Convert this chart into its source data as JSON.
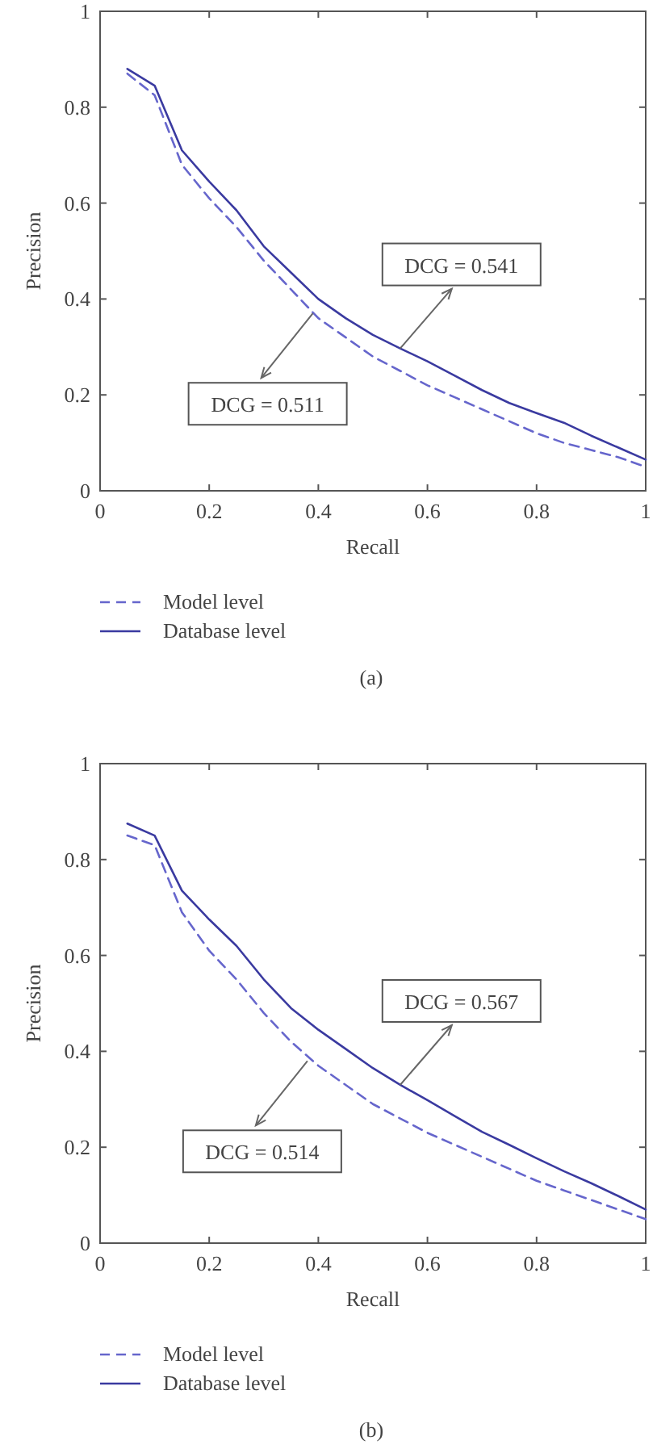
{
  "chart_data": [
    {
      "type": "line",
      "xlabel": "Recall",
      "ylabel": "Precision",
      "xlim": [
        0,
        1
      ],
      "ylim": [
        0,
        1
      ],
      "xticks": [
        0,
        0.2,
        0.4,
        0.6,
        0.8,
        1
      ],
      "yticks": [
        0,
        0.2,
        0.4,
        0.6,
        0.8,
        1
      ],
      "legend": "bottom",
      "x": [
        0.05,
        0.1,
        0.15,
        0.2,
        0.25,
        0.3,
        0.35,
        0.4,
        0.45,
        0.5,
        0.55,
        0.6,
        0.65,
        0.7,
        0.75,
        0.8,
        0.85,
        0.9,
        0.95,
        1
      ],
      "series": [
        {
          "name": "Model level",
          "color": "#6666cc",
          "line_style": "dashed",
          "values": [
            0.87,
            0.825,
            0.68,
            0.61,
            0.55,
            0.48,
            0.42,
            0.36,
            0.32,
            0.28,
            0.25,
            0.22,
            0.195,
            0.17,
            0.145,
            0.12,
            0.1,
            0.085,
            0.07,
            0.05
          ]
        },
        {
          "name": "Database level",
          "color": "#3a3aa0",
          "line_style": "solid",
          "values": [
            0.88,
            0.845,
            0.71,
            0.645,
            0.585,
            0.51,
            0.455,
            0.4,
            0.36,
            0.325,
            0.297,
            0.27,
            0.24,
            0.21,
            0.183,
            0.162,
            0.142,
            0.115,
            0.09,
            0.065
          ]
        }
      ],
      "annotations": [
        {
          "text": "DCG = 0.511",
          "x": 0.39,
          "y": 0.37
        },
        {
          "text": "DCG = 0.541",
          "x": 0.55,
          "y": 0.297
        },
        "(a)"
      ]
    },
    {
      "type": "line",
      "xlabel": "Recall",
      "ylabel": "Precision",
      "xlim": [
        0,
        1
      ],
      "ylim": [
        0,
        1
      ],
      "xticks": [
        0,
        0.2,
        0.4,
        0.6,
        0.8,
        1
      ],
      "yticks": [
        0,
        0.2,
        0.4,
        0.6,
        0.8,
        1
      ],
      "legend": "bottom",
      "x": [
        0.05,
        0.1,
        0.15,
        0.2,
        0.25,
        0.3,
        0.35,
        0.4,
        0.45,
        0.5,
        0.55,
        0.6,
        0.65,
        0.7,
        0.75,
        0.8,
        0.85,
        0.9,
        0.95,
        1
      ],
      "series": [
        {
          "name": "Model level",
          "color": "#6666cc",
          "line_style": "dashed",
          "values": [
            0.85,
            0.83,
            0.69,
            0.61,
            0.55,
            0.48,
            0.42,
            0.37,
            0.33,
            0.29,
            0.26,
            0.23,
            0.205,
            0.18,
            0.155,
            0.13,
            0.11,
            0.09,
            0.07,
            0.05
          ]
        },
        {
          "name": "Database level",
          "color": "#3a3aa0",
          "line_style": "solid",
          "values": [
            0.875,
            0.85,
            0.735,
            0.675,
            0.62,
            0.55,
            0.49,
            0.445,
            0.405,
            0.365,
            0.33,
            0.298,
            0.265,
            0.232,
            0.205,
            0.177,
            0.15,
            0.125,
            0.098,
            0.07
          ]
        }
      ],
      "annotations": [
        {
          "text": "DCG = 0.514",
          "x": 0.38,
          "y": 0.38
        },
        {
          "text": "DCG = 0.567",
          "x": 0.55,
          "y": 0.33
        },
        "(b)"
      ]
    }
  ]
}
